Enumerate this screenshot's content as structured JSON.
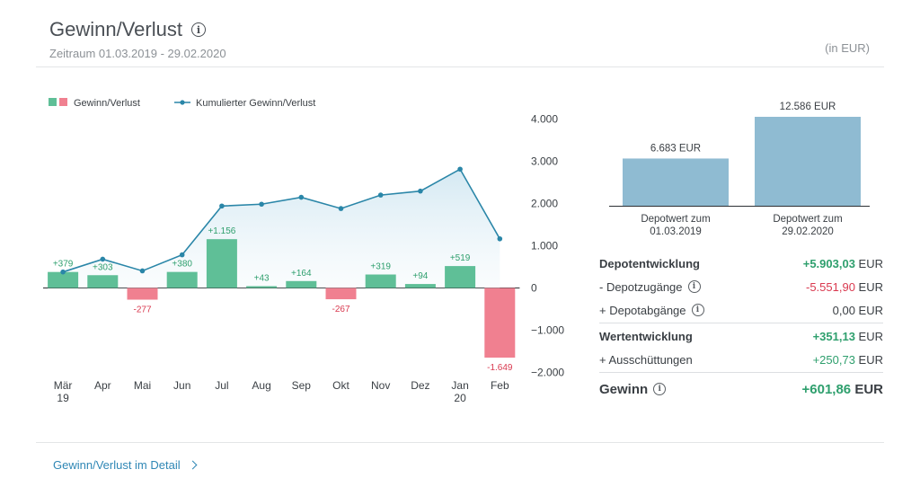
{
  "header": {
    "title": "Gewinn/Verlust",
    "info_icon": "info-icon",
    "period": "Zeitraum 01.03.2019 - 29.02.2020",
    "unit": "(in EUR)"
  },
  "colors": {
    "positive": "#5fbf97",
    "negative": "#f08090",
    "line": "#2a86a8",
    "depot_bar": "#8fbbd2",
    "positive_text": "#2e9f6d",
    "negative_text": "#d9394f",
    "link": "#2f87b5"
  },
  "chart_data": {
    "type": "bar",
    "legend": [
      {
        "label": "Gewinn/Verlust",
        "kind": "bar"
      },
      {
        "label": "Kumulierter Gewinn/Verlust",
        "kind": "line"
      }
    ],
    "legend_position": "top-left",
    "categories": [
      "Mär|19",
      "Apr",
      "Mai",
      "Jun",
      "Jul",
      "Aug",
      "Sep",
      "Okt",
      "Nov",
      "Dez",
      "Jan|20",
      "Feb"
    ],
    "series": [
      {
        "name": "Gewinn/Verlust",
        "type": "bar",
        "values": [
          379,
          303,
          -277,
          380,
          1156,
          43,
          164,
          -267,
          319,
          94,
          519,
          -1649
        ],
        "labels": [
          "+379",
          "+303",
          "-277",
          "+380",
          "+1.156",
          "+43",
          "+164",
          "-267",
          "+319",
          "+94",
          "+519",
          "-1.649"
        ]
      },
      {
        "name": "Kumulierter Gewinn/Verlust",
        "type": "line",
        "values": [
          379,
          682,
          405,
          785,
          1941,
          1984,
          2148,
          1881,
          2200,
          2294,
          2813,
          1164
        ]
      }
    ],
    "ylim": [
      -2000,
      4000
    ],
    "yticks": [
      4000,
      3000,
      2000,
      1000,
      0,
      -1000,
      -2000
    ],
    "ytick_labels": [
      "4.000",
      "3.000",
      "2.000",
      "1.000",
      "0",
      "−1.000",
      "−2.000"
    ],
    "y_axis_side": "right",
    "grid": false
  },
  "depot_chart": {
    "type": "bar",
    "bars": [
      {
        "value": 6683,
        "value_label": "6.683 EUR",
        "label_line1": "Depotwert zum",
        "label_line2": "01.03.2019"
      },
      {
        "value": 12586,
        "value_label": "12.586 EUR",
        "label_line1": "Depotwert zum",
        "label_line2": "29.02.2020"
      }
    ]
  },
  "summary": {
    "rows": [
      {
        "label": "Depotentwicklung",
        "value": "+5.903,03",
        "currency": "EUR",
        "bold": true,
        "tone": "positive",
        "info": false
      },
      {
        "label": "- Depotzugänge",
        "value": "-5.551,90",
        "currency": "EUR",
        "bold": false,
        "tone": "negative",
        "info": true
      },
      {
        "label": "+ Depotabgänge",
        "value": "0,00",
        "currency": "EUR",
        "bold": false,
        "tone": "neutral",
        "info": true
      },
      {
        "label": "Wertentwicklung",
        "value": "+351,13",
        "currency": "EUR",
        "bold": true,
        "tone": "positive",
        "info": false
      },
      {
        "label": "+ Ausschüttungen",
        "value": "+250,73",
        "currency": "EUR",
        "bold": false,
        "tone": "positive",
        "info": false
      }
    ],
    "total": {
      "label": "Gewinn",
      "value": "+601,86",
      "currency": "EUR",
      "tone": "positive",
      "info": true
    }
  },
  "footer": {
    "detail_link": "Gewinn/Verlust im Detail",
    "detail_icon": "chevron-right-icon"
  }
}
